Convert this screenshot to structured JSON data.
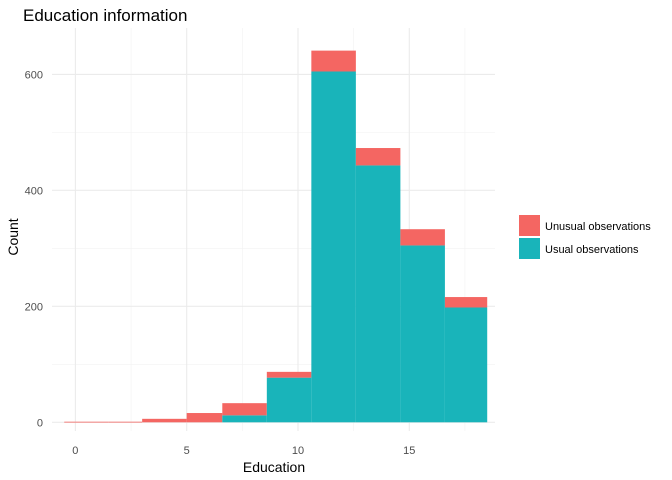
{
  "chart_data": {
    "type": "bar",
    "title": "Education information",
    "xlabel": "Education",
    "ylabel": "Count",
    "xlim": [
      -1.05,
      18.85
    ],
    "ylim": [
      -15,
      680
    ],
    "x_ticks": [
      0,
      5,
      10,
      15
    ],
    "y_ticks": [
      0,
      200,
      400,
      600
    ],
    "x_minor_gridlines": [
      2.5,
      7.5,
      12.5,
      17.5
    ],
    "y_minor_gridlines": [
      100,
      300,
      500
    ],
    "grid": true,
    "stacked": true,
    "legend_position": "right",
    "bins": [
      [
        -0.5,
        1.5
      ],
      [
        1.5,
        3.0
      ],
      [
        3.0,
        5.0
      ],
      [
        5.0,
        6.6
      ],
      [
        6.6,
        8.6
      ],
      [
        8.6,
        10.6
      ],
      [
        10.6,
        12.6
      ],
      [
        12.6,
        14.6
      ],
      [
        14.6,
        16.6
      ],
      [
        16.6,
        18.5
      ]
    ],
    "series": [
      {
        "name": "Usual observations",
        "color": "#19B4BA",
        "values": [
          0,
          0,
          0,
          0,
          12,
          77,
          605,
          443,
          305,
          198
        ]
      },
      {
        "name": "Unusual observations",
        "color": "#F46662",
        "values": [
          1,
          1,
          6,
          16,
          21,
          10,
          36,
          30,
          28,
          18
        ]
      }
    ],
    "legend": [
      {
        "label": "Unusual observations",
        "color": "#F46662"
      },
      {
        "label": "Usual observations",
        "color": "#19B4BA"
      }
    ]
  }
}
